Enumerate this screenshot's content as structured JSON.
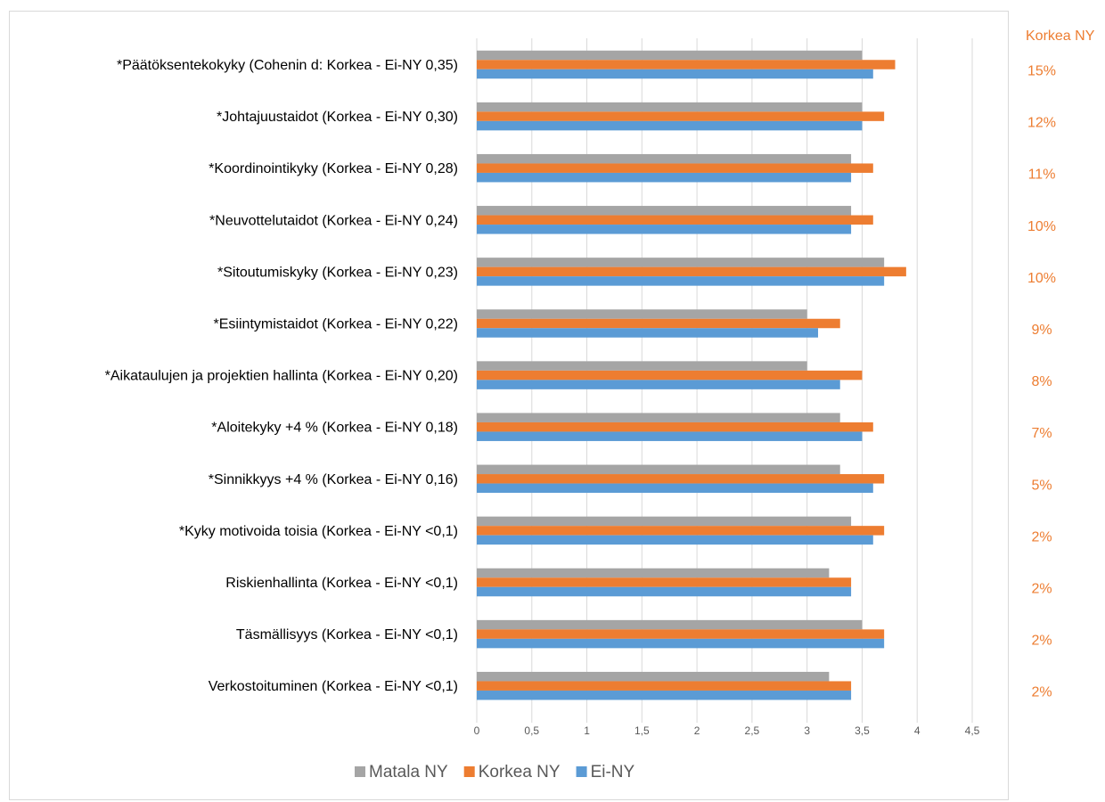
{
  "chart_data": {
    "type": "bar",
    "orientation": "horizontal",
    "categories": [
      "*Päätöksentekokyky (Cohenin d: Korkea - Ei-NY 0,35)",
      "*Johtajuustaidot  (Korkea - Ei-NY 0,30)",
      "*Koordinointikyky (Korkea - Ei-NY 0,28)",
      "*Neuvottelutaidot (Korkea - Ei-NY 0,24)",
      "*Sitoutumiskyky (Korkea - Ei-NY 0,23)",
      "*Esiintymistaidot (Korkea - Ei-NY 0,22)",
      "*Aikataulujen ja projektien hallinta (Korkea - Ei-NY 0,20)",
      "*Aloitekyky +4 % (Korkea - Ei-NY 0,18)",
      "*Sinnikkyys +4 % (Korkea - Ei-NY 0,16)",
      "*Kyky motivoida toisia (Korkea - Ei-NY <0,1)",
      "Riskienhallinta (Korkea - Ei-NY <0,1)",
      "Täsmällisyys (Korkea - Ei-NY <0,1)",
      "Verkostoituminen (Korkea - Ei-NY <0,1)"
    ],
    "series": [
      {
        "name": "Matala NY",
        "color": "#a5a5a5",
        "values": [
          3.5,
          3.5,
          3.4,
          3.4,
          3.7,
          3.0,
          3.0,
          3.3,
          3.3,
          3.4,
          3.2,
          3.5,
          3.2
        ]
      },
      {
        "name": "Korkea NY",
        "color": "#ed7d31",
        "values": [
          3.8,
          3.7,
          3.6,
          3.6,
          3.9,
          3.3,
          3.5,
          3.6,
          3.7,
          3.7,
          3.4,
          3.7,
          3.4
        ]
      },
      {
        "name": "Ei-NY",
        "color": "#5b9bd5",
        "values": [
          3.6,
          3.5,
          3.4,
          3.4,
          3.7,
          3.1,
          3.3,
          3.5,
          3.6,
          3.6,
          3.4,
          3.7,
          3.4
        ]
      }
    ],
    "xlim": [
      0,
      4.5
    ],
    "xticks": [
      "0",
      "0,5",
      "1",
      "1,5",
      "2",
      "2,5",
      "3",
      "3,5",
      "4",
      "4,5"
    ],
    "grid": true,
    "legend_position": "bottom",
    "side_annotation": {
      "title": "Korkea NY",
      "color": "#ed7d31",
      "values": [
        "15%",
        "12%",
        "11%",
        "10%",
        "10%",
        "9%",
        "8%",
        "7%",
        "5%",
        "2%",
        "2%",
        "2%",
        "2%"
      ]
    }
  }
}
